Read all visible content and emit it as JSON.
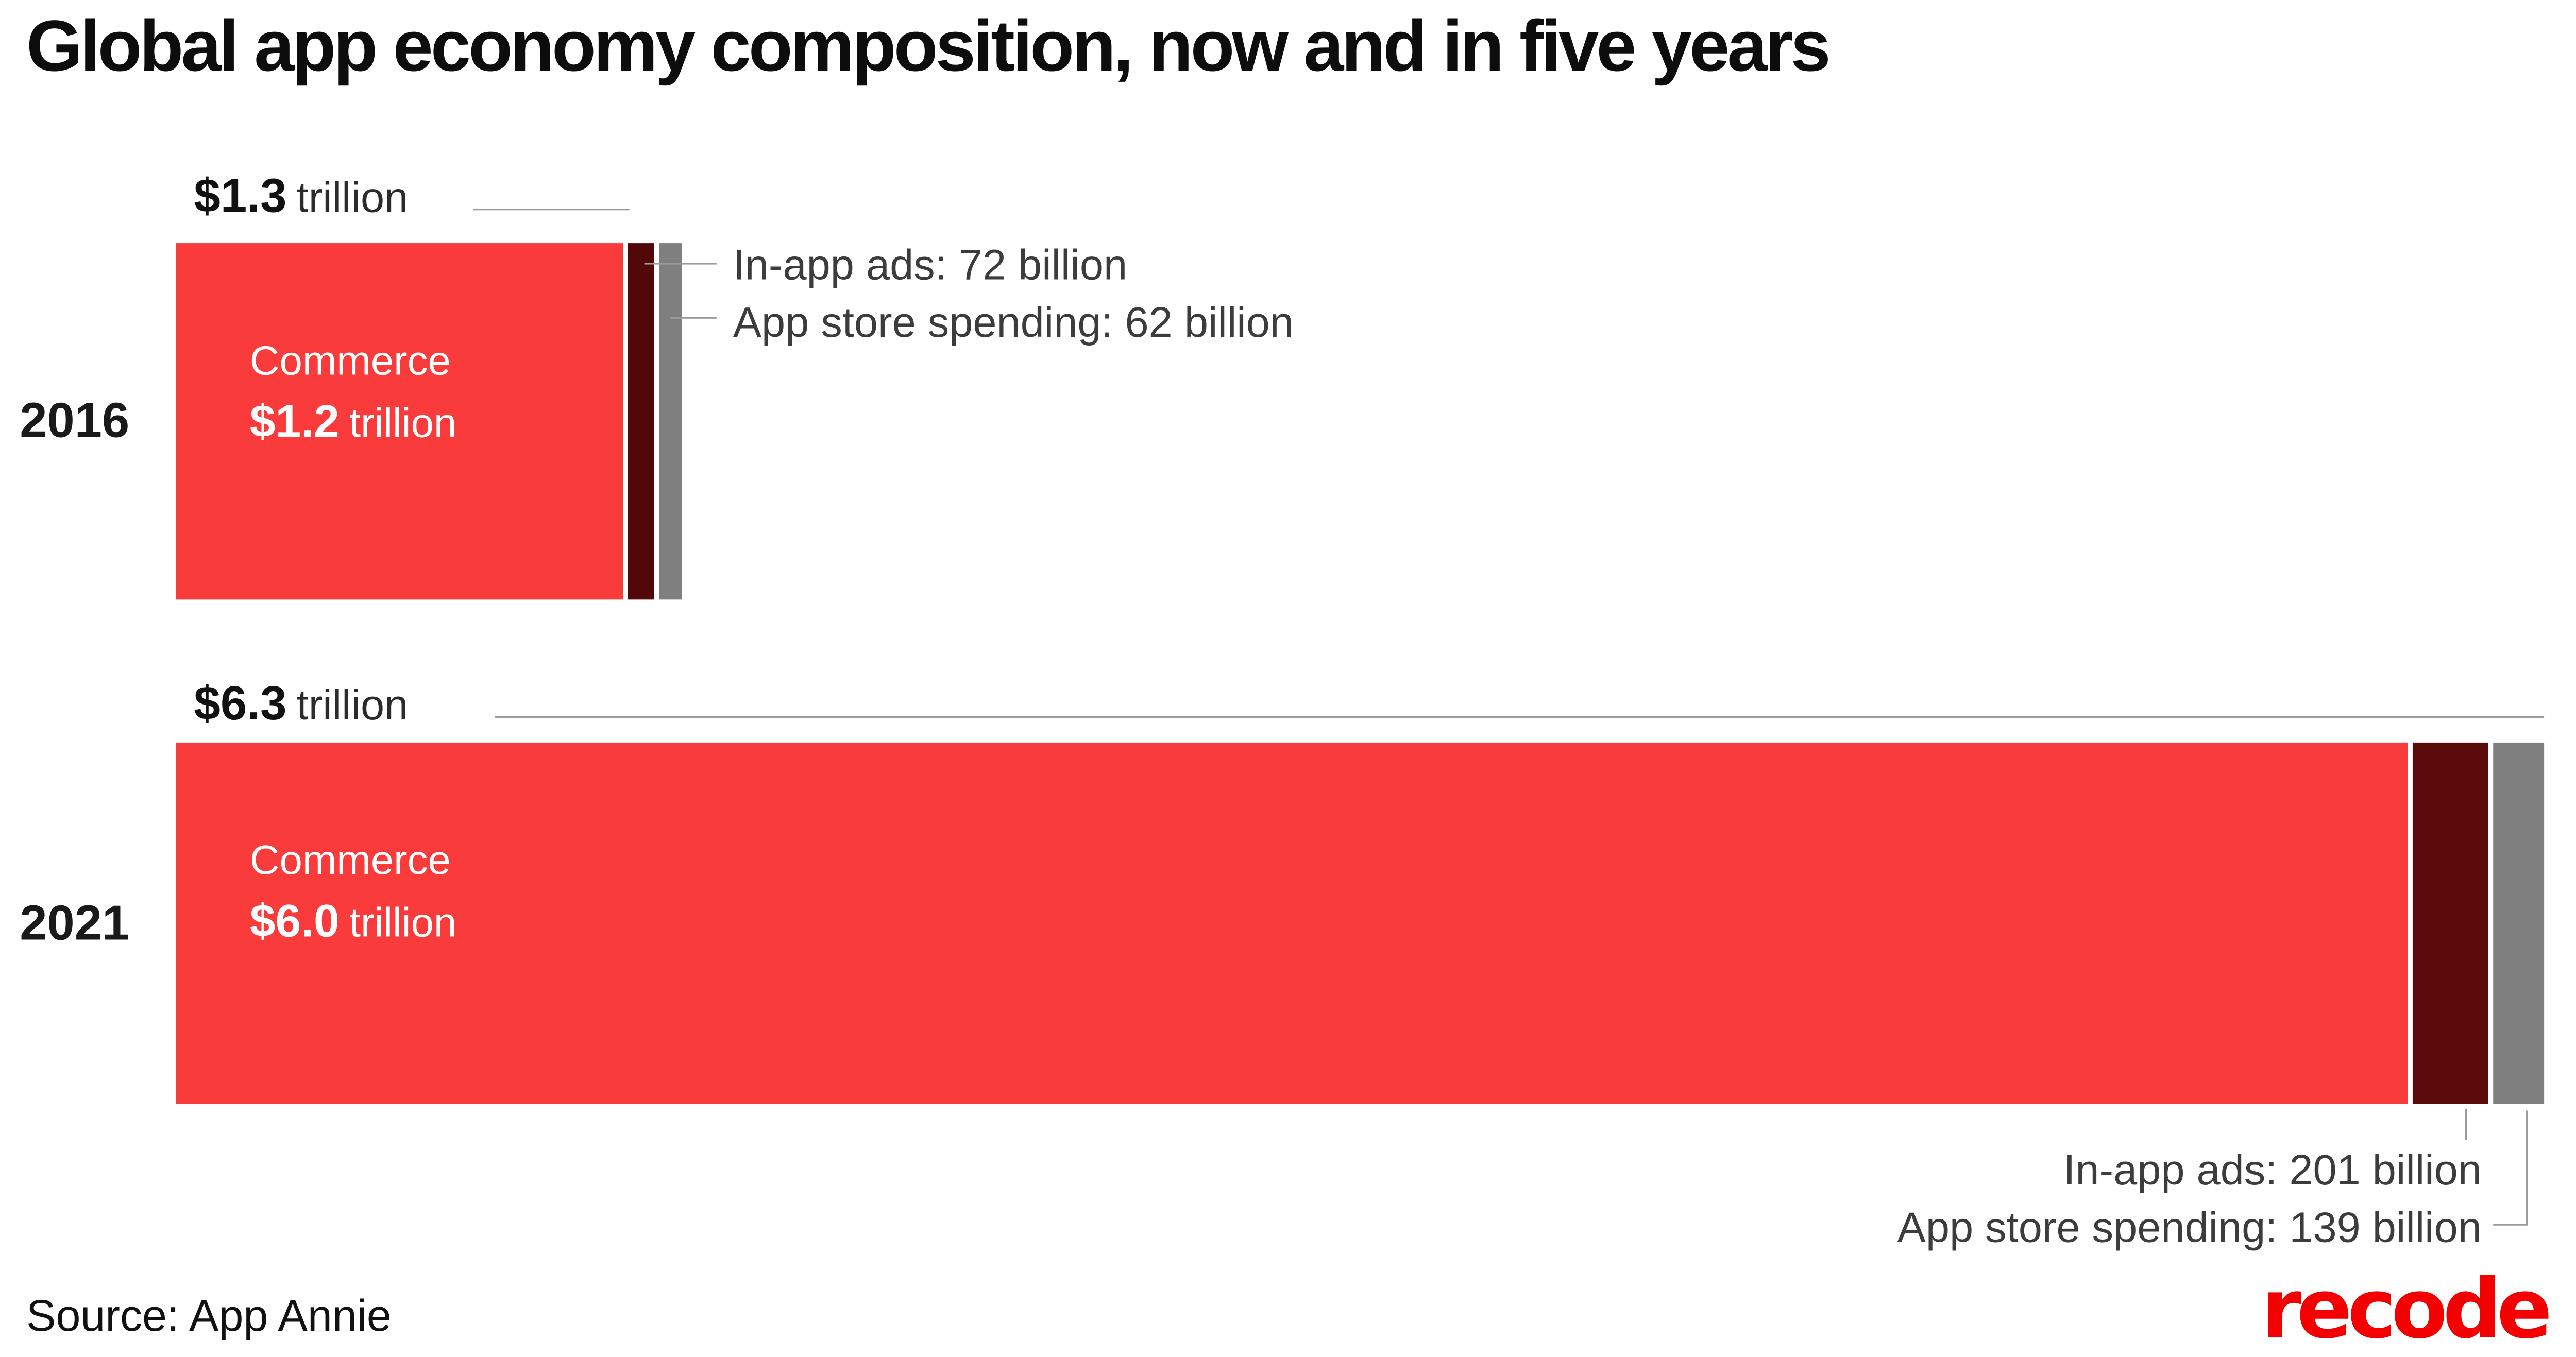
{
  "title": "Global app economy composition, now and in five years",
  "source": "Source: App Annie",
  "logo": "recode",
  "colors": {
    "commerce_red": "#f93b3b",
    "in_app_ads_dark_red": "#520808",
    "app_store_gray": "#7f7f7f",
    "logo_red": "#f50000",
    "pointer_line_gray": "#9b9b9b"
  },
  "chart_data": {
    "type": "bar",
    "orientation": "horizontal-stacked",
    "unit": "billion USD",
    "scale_total_billion": 6340,
    "categories": [
      "2016",
      "2021"
    ],
    "legend": "none",
    "grid": "off",
    "rows": [
      {
        "year": "2016",
        "total": {
          "value_label": "$1.3",
          "unit_label": "trillion",
          "value_billion": 1334
        },
        "segments": [
          {
            "name": "Commerce",
            "value": 1200,
            "color": "#f93b3b",
            "inside_label": {
              "line1": "Commerce",
              "value": "$1.2",
              "unit": "trillion"
            }
          },
          {
            "name": "In-app ads",
            "value": 72,
            "color": "#520808",
            "callout": "In-app ads: 72 billion"
          },
          {
            "name": "App store spending",
            "value": 62,
            "color": "#7f7f7f",
            "callout": "App store spending: 62 billion"
          }
        ]
      },
      {
        "year": "2021",
        "total": {
          "value_label": "$6.3",
          "unit_label": "trillion",
          "value_billion": 6340
        },
        "segments": [
          {
            "name": "Commerce",
            "value": 6000,
            "color": "#f93b3b",
            "inside_label": {
              "line1": "Commerce",
              "value": "$6.0",
              "unit": "trillion"
            }
          },
          {
            "name": "In-app ads",
            "value": 201,
            "color": "#5c0b0b",
            "callout": "In-app ads: 201 billion"
          },
          {
            "name": "App store spending",
            "value": 139,
            "color": "#7f7f7f",
            "callout": "App store spending: 139 billion"
          }
        ]
      }
    ]
  }
}
